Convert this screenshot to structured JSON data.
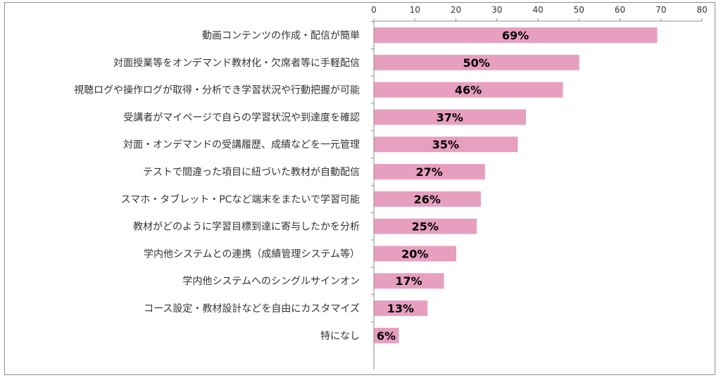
{
  "chart_data": {
    "type": "bar",
    "orientation": "horizontal",
    "xlim": [
      0,
      80
    ],
    "xticks": [
      0,
      10,
      20,
      30,
      40,
      50,
      60,
      70,
      80
    ],
    "bar_color": "#e79fc0",
    "categories": [
      "動画コンテンツの作成・配信が簡単",
      "対面授業等をオンデマンド教材化・欠席者等に手軽配信",
      "視聴ログや操作ログが取得・分析でき学習状況や行動把握が可能",
      "受講者がマイページで自らの学習状況や到達度を確認",
      "対面・オンデマンドの受講履歴、成績などを一元管理",
      "テストで間違った項目に紐づいた教材が自動配信",
      "スマホ・タブレット・PCなど端末をまたいで学習可能",
      "教材がどのように学習目標到達に寄与したかを分析",
      "学内他システムとの連携（成績管理システム等）",
      "学内他システムへのシングルサインオン",
      "コース設定・教材設計などを自由にカスタマイズ",
      "特になし"
    ],
    "values": [
      69,
      50,
      46,
      37,
      35,
      27,
      26,
      25,
      20,
      17,
      13,
      6
    ],
    "data_labels": [
      "69%",
      "50%",
      "46%",
      "37%",
      "35%",
      "27%",
      "26%",
      "25%",
      "20%",
      "17%",
      "13%",
      "6%"
    ]
  }
}
